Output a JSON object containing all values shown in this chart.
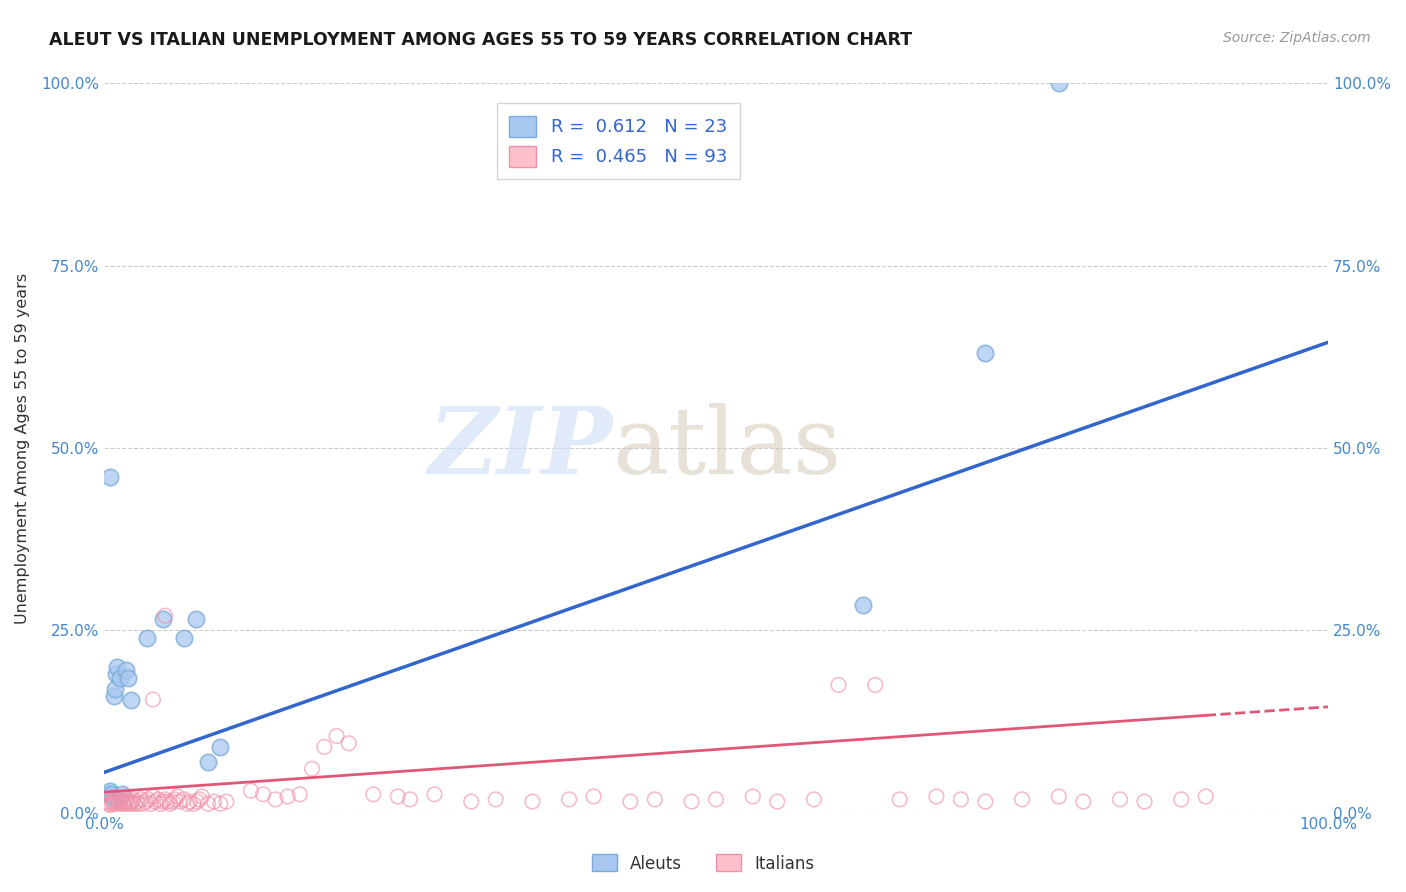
{
  "title": "ALEUT VS ITALIAN UNEMPLOYMENT AMONG AGES 55 TO 59 YEARS CORRELATION CHART",
  "source": "Source: ZipAtlas.com",
  "xlabel": "",
  "ylabel": "Unemployment Among Ages 55 to 59 years",
  "xlim": [
    0,
    1.0
  ],
  "ylim": [
    0,
    1.0
  ],
  "ytick_labels": [
    "0.0%",
    "25.0%",
    "50.0%",
    "75.0%",
    "100.0%"
  ],
  "ytick_positions": [
    0.0,
    0.25,
    0.5,
    0.75,
    1.0
  ],
  "aleut_color": "#a8c8f0",
  "aleut_edge_color": "#7aaad8",
  "italian_color": "none",
  "italian_edge_color": "#f090a8",
  "aleut_line_color": "#3366cc",
  "italian_line_color": "#e05878",
  "aleut_R": 0.612,
  "aleut_N": 23,
  "italian_R": 0.465,
  "italian_N": 93,
  "aleut_line_x0": 0.0,
  "aleut_line_y0": 0.055,
  "aleut_line_x1": 1.0,
  "aleut_line_y1": 0.645,
  "italian_line_x0": 0.0,
  "italian_line_y0": 0.028,
  "italian_line_x1": 1.0,
  "italian_line_y1": 0.145,
  "aleut_x": [
    0.004,
    0.005,
    0.006,
    0.007,
    0.008,
    0.009,
    0.01,
    0.011,
    0.013,
    0.015,
    0.018,
    0.02,
    0.022,
    0.035,
    0.048,
    0.065,
    0.075,
    0.085,
    0.095,
    0.62,
    0.72,
    0.78,
    0.005
  ],
  "aleut_y": [
    0.025,
    0.03,
    0.025,
    0.02,
    0.16,
    0.17,
    0.19,
    0.2,
    0.185,
    0.025,
    0.195,
    0.185,
    0.155,
    0.24,
    0.265,
    0.24,
    0.265,
    0.07,
    0.09,
    0.285,
    0.63,
    1.0,
    0.46
  ],
  "italian_x": [
    0.003,
    0.004,
    0.005,
    0.006,
    0.007,
    0.008,
    0.009,
    0.01,
    0.011,
    0.012,
    0.013,
    0.014,
    0.015,
    0.016,
    0.017,
    0.018,
    0.019,
    0.02,
    0.021,
    0.022,
    0.023,
    0.024,
    0.025,
    0.027,
    0.028,
    0.03,
    0.032,
    0.034,
    0.036,
    0.038,
    0.04,
    0.042,
    0.044,
    0.046,
    0.048,
    0.05,
    0.052,
    0.054,
    0.056,
    0.058,
    0.06,
    0.062,
    0.065,
    0.068,
    0.07,
    0.073,
    0.076,
    0.078,
    0.08,
    0.085,
    0.09,
    0.095,
    0.1,
    0.12,
    0.13,
    0.14,
    0.15,
    0.16,
    0.17,
    0.18,
    0.19,
    0.2,
    0.22,
    0.24,
    0.25,
    0.27,
    0.3,
    0.32,
    0.35,
    0.38,
    0.4,
    0.43,
    0.45,
    0.48,
    0.5,
    0.53,
    0.55,
    0.58,
    0.6,
    0.63,
    0.65,
    0.68,
    0.7,
    0.72,
    0.75,
    0.78,
    0.8,
    0.83,
    0.85,
    0.88,
    0.9,
    0.04,
    0.05
  ],
  "italian_y": [
    0.015,
    0.012,
    0.01,
    0.015,
    0.012,
    0.015,
    0.012,
    0.018,
    0.015,
    0.012,
    0.015,
    0.018,
    0.012,
    0.015,
    0.012,
    0.015,
    0.018,
    0.012,
    0.015,
    0.012,
    0.015,
    0.018,
    0.012,
    0.015,
    0.012,
    0.018,
    0.012,
    0.015,
    0.018,
    0.012,
    0.022,
    0.015,
    0.018,
    0.012,
    0.015,
    0.018,
    0.015,
    0.012,
    0.015,
    0.018,
    0.022,
    0.015,
    0.018,
    0.012,
    0.015,
    0.012,
    0.015,
    0.018,
    0.022,
    0.012,
    0.015,
    0.012,
    0.015,
    0.03,
    0.025,
    0.018,
    0.022,
    0.025,
    0.06,
    0.09,
    0.105,
    0.095,
    0.025,
    0.022,
    0.018,
    0.025,
    0.015,
    0.018,
    0.015,
    0.018,
    0.022,
    0.015,
    0.018,
    0.015,
    0.018,
    0.022,
    0.015,
    0.018,
    0.175,
    0.175,
    0.018,
    0.022,
    0.018,
    0.015,
    0.018,
    0.022,
    0.015,
    0.018,
    0.015,
    0.018,
    0.022,
    0.155,
    0.27
  ]
}
